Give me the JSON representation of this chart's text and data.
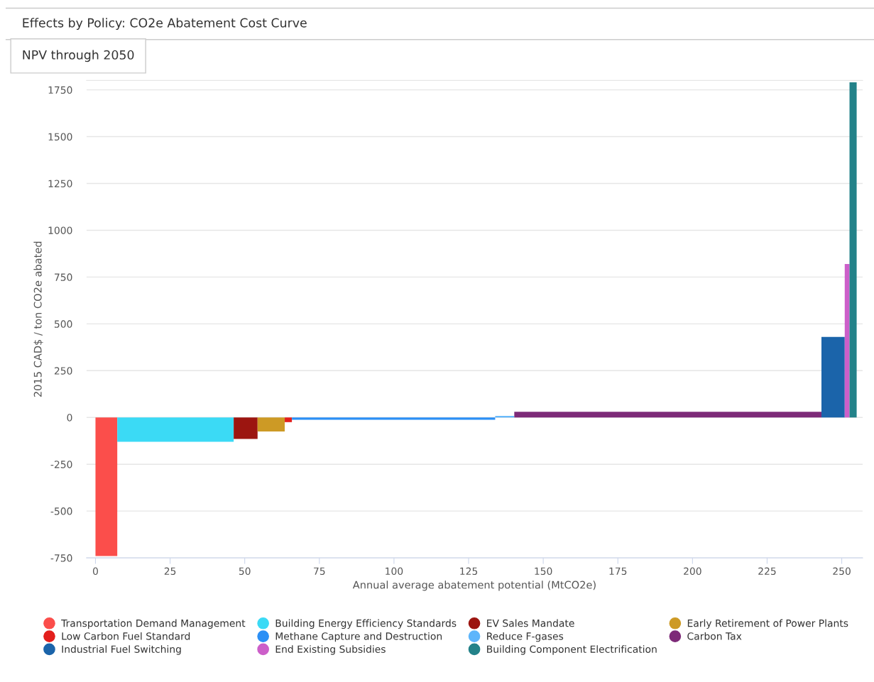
{
  "chart_data": {
    "type": "area",
    "title": "Effects by Policy: CO2e Abatement Cost Curve",
    "subtitle": "NPV through 2050",
    "xlabel": "Annual average abatement potential (MtCO2e)",
    "ylabel": "2015 CAD$ / ton CO2e abated",
    "xlim": [
      -3,
      257
    ],
    "xticks": [
      0,
      25,
      50,
      75,
      100,
      125,
      150,
      175,
      200,
      225,
      250
    ],
    "ylim": [
      -750,
      1800
    ],
    "yticks": [
      -750,
      -500,
      -250,
      0,
      250,
      500,
      750,
      1000,
      1250,
      1500,
      1750
    ],
    "grid": "y",
    "legend": "bottom",
    "series": [
      {
        "name": "Transportation Demand Management",
        "color": "#fb4e4b",
        "x": [
          0,
          7.3
        ],
        "values": [
          -740,
          -740
        ]
      },
      {
        "name": "Building Energy Efficiency Standards",
        "color": "#3bdaf5",
        "x": [
          7.3,
          46.3
        ],
        "values": [
          -130,
          -130
        ]
      },
      {
        "name": "EV Sales Mandate",
        "color": "#9c1510",
        "x": [
          46.3,
          54.3
        ],
        "values": [
          -115,
          -115
        ]
      },
      {
        "name": "Early Retirement of Power Plants",
        "color": "#cd9a25",
        "x": [
          54.3,
          63.4
        ],
        "values": [
          -75,
          -75
        ]
      },
      {
        "name": "Low Carbon Fuel Standard",
        "color": "#e31f1c",
        "x": [
          63.4,
          65.8
        ],
        "values": [
          -25,
          -25
        ]
      },
      {
        "name": "Methane Capture and Destruction",
        "color": "#2b8ff5",
        "x": [
          65.8,
          133.9
        ],
        "values": [
          -12,
          -12
        ]
      },
      {
        "name": "Reduce F-gases",
        "color": "#5db5fb",
        "x": [
          133.9,
          140.3
        ],
        "values": [
          8,
          8
        ]
      },
      {
        "name": "Carbon Tax",
        "color": "#7d2a78",
        "x": [
          140.3,
          243.2
        ],
        "values": [
          30,
          30
        ]
      },
      {
        "name": "Industrial Fuel Switching",
        "color": "#1b64aa",
        "x": [
          243.2,
          251
        ],
        "values": [
          430,
          430
        ]
      },
      {
        "name": "End Existing Subsidies",
        "color": "#cc5fc9",
        "x": [
          251,
          252.6
        ],
        "values": [
          820,
          820
        ]
      },
      {
        "name": "Building Component Electrification",
        "color": "#238289",
        "x": [
          252.6,
          255
        ],
        "values": [
          1790,
          1790
        ]
      }
    ]
  }
}
